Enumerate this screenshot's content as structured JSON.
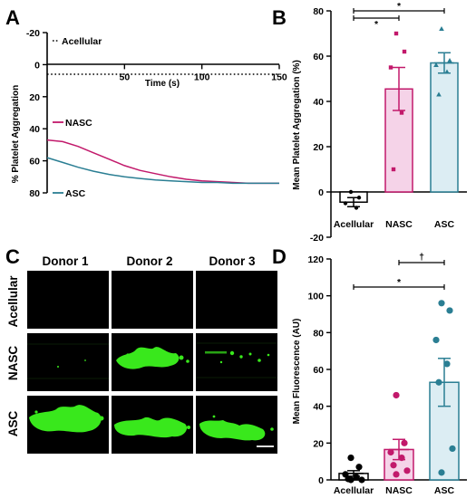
{
  "panel_labels": {
    "a": "A",
    "b": "B",
    "c": "C",
    "d": "D"
  },
  "colors": {
    "acellular": "#000000",
    "nasc": "#c2196b",
    "asc": "#2a7e93",
    "nasc_fill": "#f5d3e8",
    "asc_fill": "#dcedf3",
    "fluor": "#39e81c"
  },
  "chart_data": [
    {
      "panel": "A",
      "type": "line",
      "xlabel": "Time (s)",
      "ylabel": "% Platelet Aggregation",
      "xlim": [
        0,
        150
      ],
      "ylim": [
        -20,
        80
      ],
      "y_inverted": true,
      "xticks": [
        50,
        100,
        150
      ],
      "yticks": [
        -20,
        0,
        20,
        40,
        60,
        80
      ],
      "series": [
        {
          "name": "Acellular",
          "style": "dotted",
          "x": [
            0,
            10,
            20,
            30,
            40,
            50,
            60,
            70,
            80,
            90,
            100,
            110,
            120,
            130,
            140,
            150
          ],
          "values": [
            6,
            6,
            6,
            6,
            6,
            6,
            6,
            6,
            6,
            6,
            6,
            6,
            6,
            6,
            6,
            6
          ]
        },
        {
          "name": "NASC",
          "style": "solid",
          "x": [
            0,
            10,
            20,
            30,
            40,
            50,
            60,
            70,
            80,
            90,
            100,
            110,
            120,
            130,
            140,
            150
          ],
          "values": [
            47,
            48,
            51,
            55,
            59,
            63,
            66,
            68,
            70,
            71.5,
            72.5,
            73,
            73.5,
            74,
            74,
            74
          ]
        },
        {
          "name": "ASC",
          "style": "solid",
          "x": [
            0,
            10,
            20,
            30,
            40,
            50,
            60,
            70,
            80,
            90,
            100,
            110,
            120,
            130,
            140,
            150
          ],
          "values": [
            58,
            61,
            64,
            66.5,
            68.5,
            70,
            71,
            72,
            72.5,
            73,
            73.5,
            73.5,
            74,
            74,
            74,
            74
          ]
        }
      ]
    },
    {
      "panel": "B",
      "type": "bar",
      "ylabel": "Mean Platelet Aggregation (%)",
      "ylim": [
        -20,
        80
      ],
      "yticks": [
        -20,
        0,
        20,
        40,
        60,
        80
      ],
      "categories": [
        "Acellular",
        "NASC",
        "ASC"
      ],
      "values": [
        -4.5,
        45.5,
        57
      ],
      "errors": [
        2,
        9.5,
        4.5
      ],
      "points": [
        [
          0,
          -2.5,
          -5,
          -7
        ],
        [
          70,
          62,
          55,
          35,
          10
        ],
        [
          72,
          58,
          56,
          53,
          43
        ]
      ],
      "significance": [
        "*",
        "*"
      ]
    },
    {
      "panel": "D",
      "type": "bar",
      "ylabel": "Mean Fluorescence (AU)",
      "ylim": [
        0,
        120
      ],
      "yticks": [
        0,
        20,
        40,
        60,
        80,
        100,
        120
      ],
      "categories": [
        "Acellular",
        "NASC",
        "ASC"
      ],
      "values": [
        3.5,
        16.5,
        53
      ],
      "errors": [
        1.5,
        5.5,
        13
      ],
      "points": [
        [
          12,
          7,
          3,
          1.5,
          0.5,
          0,
          0
        ],
        [
          46,
          20,
          15,
          12,
          8,
          5,
          3
        ],
        [
          96,
          92,
          76,
          63,
          53,
          17,
          4
        ]
      ],
      "significance": [
        "*",
        "†"
      ]
    },
    {
      "panel": "C",
      "type": "table",
      "columns": [
        "Donor 1",
        "Donor 2",
        "Donor 3"
      ],
      "rows": [
        "Acellular",
        "NASC",
        "ASC"
      ]
    }
  ]
}
